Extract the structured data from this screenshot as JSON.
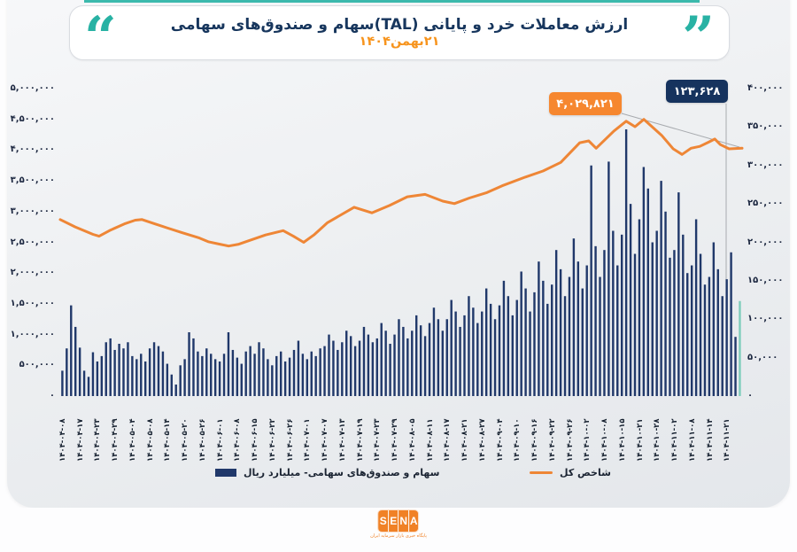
{
  "header": {
    "title": "ارزش معاملات خرد و پایانی (TAL)سهام و صندوق‌های سهامی",
    "subtitle": "۲۱بهمن۱۴۰۴"
  },
  "icons": {
    "open_quote": "“",
    "close_quote": "”"
  },
  "annotations": {
    "index_value": "۴,۰۲۹,۸۲۱",
    "bar_value": "۱۲۳,۶۲۸"
  },
  "legend": {
    "bars": "سهام و صندوق‌های سهامی- میلیارد ریال",
    "line": "شاخص کل"
  },
  "footer": {
    "logo_letters": [
      "S",
      "E",
      "N",
      "A"
    ],
    "tagline": "پایگاه خبری بازار سرمایه ایران"
  },
  "colors": {
    "bar": "#20386a",
    "bar_last": "#7ecdbb",
    "line": "#ee8636",
    "leader_gray": "#a8abaf",
    "annotation_orange_bg": "#f6872f",
    "annotation_navy_bg": "#16335e",
    "title_navy": "#17365d",
    "subtitle_orange": "#f7941d",
    "quote_teal": "#28b2a4",
    "logo_orange": "#f08126"
  },
  "chart_data": {
    "type": "bar",
    "subtype": "combo bar+line, dual axis",
    "title": "ارزش معاملات خرد و پایانی (TAL)سهام و صندوق‌های سهامی ۲۱بهمن۱۴۰۴",
    "legend_position": "bottom",
    "grid": false,
    "x_labels": [
      "۱۴۰۴-۰۴-۰۸",
      "۱۴۰۴-۰۴-۱۷",
      "۱۴۰۴-۰۴-۲۳",
      "۱۴۰۴-۰۴-۲۹",
      "۱۴۰۴-۰۵-۰۴",
      "۱۴۰۴-۰۵-۰۸",
      "۱۴۰۴-۰۵-۱۴",
      "۱۴۰۴-۰۵-۲۰",
      "۱۴۰۴-۰۵-۲۶",
      "۱۴۰۴-۰۶-۰۱",
      "۱۴۰۴-۰۶-۰۸",
      "۱۴۰۴-۰۶-۱۵",
      "۱۴۰۴-۰۶-۲۲",
      "۱۴۰۴-۰۶-۲۶",
      "۱۴۰۴-۰۷-۰۱",
      "۱۴۰۴-۰۷-۰۷",
      "۱۴۰۴-۰۷-۱۳",
      "۱۴۰۴-۰۷-۱۹",
      "۱۴۰۴-۰۷-۲۳",
      "۱۴۰۴-۰۷-۲۹",
      "۱۴۰۴-۰۸-۰۵",
      "۱۴۰۴-۰۸-۱۱",
      "۱۴۰۴-۰۸-۱۷",
      "۱۴۰۴-۰۸-۲۱",
      "۱۴۰۴-۰۸-۲۷",
      "۱۴۰۴-۰۹-۰۴",
      "۱۴۰۴-۰۹-۱۰",
      "۱۴۰۴-۰۹-۱۶",
      "۱۴۰۴-۰۹-۲۲",
      "۱۴۰۴-۰۹-۲۶",
      "۱۴۰۴-۱۰-۰۲",
      "۱۴۰۴-۱۰-۰۸",
      "۱۴۰۴-۱۰-۱۵",
      "۱۴۰۴-۱۰-۲۱",
      "۱۴۰۴-۱۰-۲۸",
      "۱۴۰۴-۱۱-۰۲",
      "۱۴۰۴-۱۱-۰۸",
      "۱۴۰۴-۱۱-۱۴",
      "۱۴۰۴-۱۱-۲۱"
    ],
    "axes": {
      "left": {
        "max": 5000000,
        "min": 0,
        "ticks": [
          "۵,۰۰۰,۰۰۰",
          "۴,۵۰۰,۰۰۰",
          "۴,۰۰۰,۰۰۰",
          "۳,۵۰۰,۰۰۰",
          "۳,۰۰۰,۰۰۰",
          "۲,۵۰۰,۰۰۰",
          "۲,۰۰۰,۰۰۰",
          "۱,۵۰۰,۰۰۰",
          "۱,۰۰۰,۰۰۰",
          "۵۰۰,۰۰۰",
          "۰"
        ]
      },
      "right": {
        "max": 400000,
        "min": 0,
        "ticks": [
          "۴۰۰,۰۰۰",
          "۳۵۰,۰۰۰",
          "۳۰۰,۰۰۰",
          "۲۵۰,۰۰۰",
          "۲۰۰,۰۰۰",
          "۱۵۰,۰۰۰",
          "۱۰۰,۰۰۰",
          "۵۰,۰۰۰",
          "۰"
        ]
      }
    },
    "bars": {
      "name": "سهام و صندوق‌های سهامی- میلیارد ریال",
      "axis": "right",
      "unit": "میلیارد ریال",
      "highlight_index": 155,
      "last_value": 123628,
      "values": [
        33000,
        62000,
        118000,
        90000,
        63000,
        33000,
        25000,
        57000,
        45000,
        52000,
        70000,
        75000,
        60000,
        68000,
        62000,
        70000,
        52000,
        48000,
        55000,
        45000,
        62000,
        70000,
        65000,
        58000,
        42000,
        28000,
        15000,
        40000,
        48000,
        83000,
        75000,
        58000,
        52000,
        62000,
        55000,
        48000,
        45000,
        55000,
        83000,
        60000,
        50000,
        42000,
        58000,
        65000,
        55000,
        70000,
        62000,
        48000,
        40000,
        52000,
        58000,
        45000,
        50000,
        60000,
        72000,
        55000,
        48000,
        58000,
        52000,
        62000,
        65000,
        80000,
        72000,
        60000,
        70000,
        85000,
        78000,
        65000,
        72000,
        90000,
        80000,
        70000,
        75000,
        95000,
        85000,
        68000,
        80000,
        100000,
        90000,
        75000,
        85000,
        105000,
        92000,
        78000,
        95000,
        115000,
        100000,
        85000,
        100000,
        125000,
        110000,
        90000,
        105000,
        130000,
        115000,
        95000,
        110000,
        140000,
        120000,
        100000,
        118000,
        150000,
        130000,
        105000,
        125000,
        162000,
        140000,
        110000,
        135000,
        175000,
        150000,
        120000,
        145000,
        190000,
        165000,
        130000,
        155000,
        205000,
        175000,
        140000,
        170000,
        300000,
        195000,
        155000,
        190000,
        305000,
        215000,
        170000,
        210000,
        347000,
        250000,
        185000,
        230000,
        298000,
        270000,
        200000,
        215000,
        280000,
        240000,
        180000,
        190000,
        265000,
        210000,
        160000,
        170000,
        230000,
        185000,
        145000,
        155000,
        200000,
        165000,
        130000,
        152000,
        187000,
        77000,
        123628
      ]
    },
    "line": {
      "name": "شاخص کل",
      "axis": "left",
      "last_value": 4029821,
      "points": [
        [
          0.0,
          2870000
        ],
        [
          0.022,
          2750000
        ],
        [
          0.048,
          2630000
        ],
        [
          0.057,
          2600000
        ],
        [
          0.074,
          2700000
        ],
        [
          0.094,
          2800000
        ],
        [
          0.11,
          2860000
        ],
        [
          0.12,
          2870000
        ],
        [
          0.139,
          2800000
        ],
        [
          0.158,
          2730000
        ],
        [
          0.178,
          2660000
        ],
        [
          0.204,
          2570000
        ],
        [
          0.217,
          2510000
        ],
        [
          0.234,
          2470000
        ],
        [
          0.247,
          2440000
        ],
        [
          0.262,
          2470000
        ],
        [
          0.275,
          2520000
        ],
        [
          0.301,
          2620000
        ],
        [
          0.327,
          2690000
        ],
        [
          0.342,
          2600000
        ],
        [
          0.357,
          2500000
        ],
        [
          0.372,
          2620000
        ],
        [
          0.392,
          2820000
        ],
        [
          0.431,
          3070000
        ],
        [
          0.457,
          2980000
        ],
        [
          0.483,
          3100000
        ],
        [
          0.509,
          3240000
        ],
        [
          0.535,
          3280000
        ],
        [
          0.561,
          3170000
        ],
        [
          0.578,
          3130000
        ],
        [
          0.6,
          3220000
        ],
        [
          0.626,
          3310000
        ],
        [
          0.648,
          3420000
        ],
        [
          0.682,
          3560000
        ],
        [
          0.708,
          3660000
        ],
        [
          0.734,
          3800000
        ],
        [
          0.762,
          4120000
        ],
        [
          0.775,
          4150000
        ],
        [
          0.786,
          4030000
        ],
        [
          0.812,
          4310000
        ],
        [
          0.83,
          4470000
        ],
        [
          0.843,
          4380000
        ],
        [
          0.856,
          4500000
        ],
        [
          0.882,
          4240000
        ],
        [
          0.899,
          4020000
        ],
        [
          0.912,
          3930000
        ],
        [
          0.925,
          4030000
        ],
        [
          0.938,
          4060000
        ],
        [
          0.951,
          4130000
        ],
        [
          0.96,
          4180000
        ],
        [
          0.968,
          4090000
        ],
        [
          0.981,
          4020000
        ],
        [
          1.0,
          4029821
        ]
      ]
    }
  }
}
